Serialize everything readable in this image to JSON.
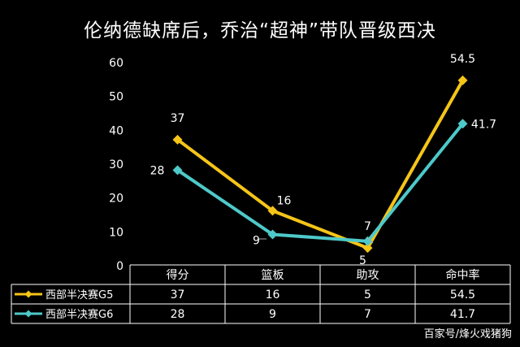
{
  "title": "伦纳德缺席后，乔治“超神”带队晋级西决",
  "watermark": "百家号/烽火戏猪狗",
  "chart_data": {
    "type": "line",
    "title": "伦纳德缺席后，乔治“超神”带队晋级西决",
    "categories": [
      "得分",
      "篮板",
      "助攻",
      "命中率"
    ],
    "series": [
      {
        "name": "西部半决赛G5",
        "values": [
          37,
          16,
          5,
          54.5
        ],
        "color": "#f5c518"
      },
      {
        "name": "西部半决赛G6",
        "values": [
          28,
          9,
          7,
          41.7
        ],
        "color": "#4ec9c9"
      }
    ],
    "ylim": [
      0,
      60
    ],
    "yticks": [
      0,
      10,
      20,
      30,
      40,
      50,
      60
    ],
    "grid": false,
    "legend": "data-table"
  }
}
